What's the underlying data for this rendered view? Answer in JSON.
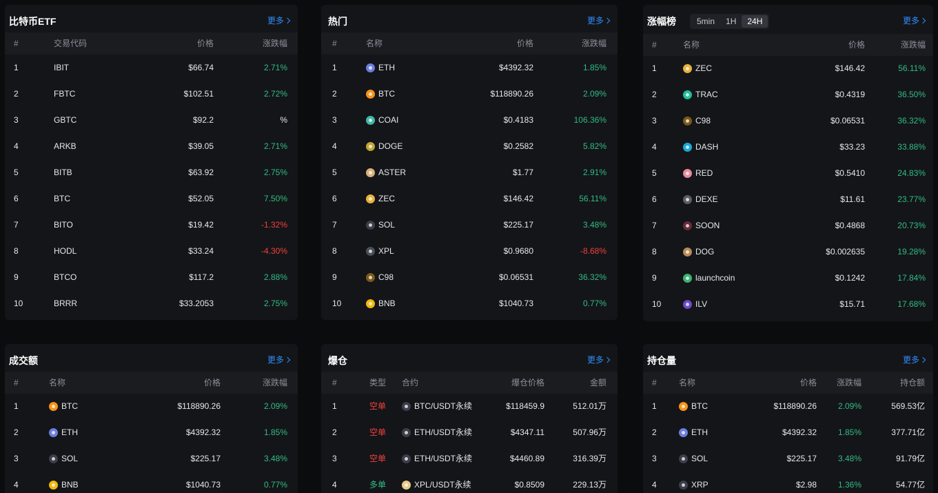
{
  "etf": {
    "title": "比特币ETF",
    "more": "更多",
    "headers": [
      "#",
      "交易代码",
      "价格",
      "涨跌幅"
    ],
    "rows": [
      {
        "rank": "1",
        "symbol": "IBIT",
        "price": "$66.74",
        "change": "2.71%",
        "dir": "up"
      },
      {
        "rank": "2",
        "symbol": "FBTC",
        "price": "$102.51",
        "change": "2.72%",
        "dir": "up"
      },
      {
        "rank": "3",
        "symbol": "GBTC",
        "price": "$92.2",
        "change": "%",
        "dir": "flat"
      },
      {
        "rank": "4",
        "symbol": "ARKB",
        "price": "$39.05",
        "change": "2.71%",
        "dir": "up"
      },
      {
        "rank": "5",
        "symbol": "BITB",
        "price": "$63.92",
        "change": "2.75%",
        "dir": "up"
      },
      {
        "rank": "6",
        "symbol": "BTC",
        "price": "$52.05",
        "change": "7.50%",
        "dir": "up"
      },
      {
        "rank": "7",
        "symbol": "BITO",
        "price": "$19.42",
        "change": "-1.32%",
        "dir": "down"
      },
      {
        "rank": "8",
        "symbol": "HODL",
        "price": "$33.24",
        "change": "-4.30%",
        "dir": "down"
      },
      {
        "rank": "9",
        "symbol": "BTCO",
        "price": "$117.2",
        "change": "2.88%",
        "dir": "up"
      },
      {
        "rank": "10",
        "symbol": "BRRR",
        "price": "$33.2053",
        "change": "2.75%",
        "dir": "up"
      }
    ]
  },
  "hot": {
    "title": "热门",
    "more": "更多",
    "headers": [
      "#",
      "名称",
      "价格",
      "涨跌幅"
    ],
    "rows": [
      {
        "rank": "1",
        "name": "ETH",
        "icon": "eth-icon",
        "color": "#6b7fe0",
        "price": "$4392.32",
        "change": "1.85%",
        "dir": "up"
      },
      {
        "rank": "2",
        "name": "BTC",
        "icon": "btc-icon",
        "color": "#f7931a",
        "price": "$118890.26",
        "change": "2.09%",
        "dir": "up"
      },
      {
        "rank": "3",
        "name": "COAI",
        "icon": "coai-icon",
        "color": "#3fb8a8",
        "price": "$0.4183",
        "change": "106.36%",
        "dir": "up"
      },
      {
        "rank": "4",
        "name": "DOGE",
        "icon": "doge-icon",
        "color": "#c2a633",
        "price": "$0.2582",
        "change": "5.82%",
        "dir": "up"
      },
      {
        "rank": "5",
        "name": "ASTER",
        "icon": "aster-icon",
        "color": "#d9b07a",
        "price": "$1.77",
        "change": "2.91%",
        "dir": "up"
      },
      {
        "rank": "6",
        "name": "ZEC",
        "icon": "zec-icon",
        "color": "#e8b33a",
        "price": "$146.42",
        "change": "56.11%",
        "dir": "up"
      },
      {
        "rank": "7",
        "name": "SOL",
        "icon": "sol-icon",
        "color": "#3a3f4a",
        "price": "$225.17",
        "change": "3.48%",
        "dir": "up"
      },
      {
        "rank": "8",
        "name": "XPL",
        "icon": "xpl-icon",
        "color": "#4a4f58",
        "price": "$0.9680",
        "change": "-8.68%",
        "dir": "down"
      },
      {
        "rank": "9",
        "name": "C98",
        "icon": "c98-icon",
        "color": "#7a5a1a",
        "price": "$0.06531",
        "change": "36.32%",
        "dir": "up"
      },
      {
        "rank": "10",
        "name": "BNB",
        "icon": "bnb-icon",
        "color": "#f0b90b",
        "price": "$1040.73",
        "change": "0.77%",
        "dir": "up"
      }
    ]
  },
  "gainers": {
    "title": "涨幅榜",
    "more": "更多",
    "tabs": [
      "5min",
      "1H",
      "24H"
    ],
    "active_tab": "24H",
    "headers": [
      "#",
      "名称",
      "价格",
      "涨跌幅"
    ],
    "rows": [
      {
        "rank": "1",
        "name": "ZEC",
        "icon": "zec-icon",
        "color": "#e8b33a",
        "price": "$146.42",
        "change": "56.11%",
        "dir": "up"
      },
      {
        "rank": "2",
        "name": "TRAC",
        "icon": "trac-icon",
        "color": "#1fbf9a",
        "price": "$0.4319",
        "change": "36.50%",
        "dir": "up"
      },
      {
        "rank": "3",
        "name": "C98",
        "icon": "c98-icon",
        "color": "#7a5a1a",
        "price": "$0.06531",
        "change": "36.32%",
        "dir": "up"
      },
      {
        "rank": "4",
        "name": "DASH",
        "icon": "dash-icon",
        "color": "#1aa9d8",
        "price": "$33.23",
        "change": "33.88%",
        "dir": "up"
      },
      {
        "rank": "5",
        "name": "RED",
        "icon": "red-icon",
        "color": "#e88a9a",
        "price": "$0.5410",
        "change": "24.83%",
        "dir": "up"
      },
      {
        "rank": "6",
        "name": "DEXE",
        "icon": "dexe-icon",
        "color": "#5a5e66",
        "price": "$11.61",
        "change": "23.77%",
        "dir": "up"
      },
      {
        "rank": "7",
        "name": "SOON",
        "icon": "soon-icon",
        "color": "#6a2a3a",
        "price": "$0.4868",
        "change": "20.73%",
        "dir": "up"
      },
      {
        "rank": "8",
        "name": "DOG",
        "icon": "dog-icon",
        "color": "#b88a5a",
        "price": "$0.002635",
        "change": "19.28%",
        "dir": "up"
      },
      {
        "rank": "9",
        "name": "launchcoin",
        "icon": "launchcoin-icon",
        "color": "#3cb371",
        "price": "$0.1242",
        "change": "17.84%",
        "dir": "up"
      },
      {
        "rank": "10",
        "name": "ILV",
        "icon": "ilv-icon",
        "color": "#6a4ac8",
        "price": "$15.71",
        "change": "17.68%",
        "dir": "up"
      }
    ]
  },
  "volume": {
    "title": "成交额",
    "more": "更多",
    "headers": [
      "#",
      "名称",
      "价格",
      "涨跌幅"
    ],
    "rows": [
      {
        "rank": "1",
        "name": "BTC",
        "icon": "btc-icon",
        "color": "#f7931a",
        "price": "$118890.26",
        "change": "2.09%",
        "dir": "up"
      },
      {
        "rank": "2",
        "name": "ETH",
        "icon": "eth-icon",
        "color": "#6b7fe0",
        "price": "$4392.32",
        "change": "1.85%",
        "dir": "up"
      },
      {
        "rank": "3",
        "name": "SOL",
        "icon": "sol-icon",
        "color": "#3a3f4a",
        "price": "$225.17",
        "change": "3.48%",
        "dir": "up"
      },
      {
        "rank": "4",
        "name": "BNB",
        "icon": "bnb-icon",
        "color": "#f0b90b",
        "price": "$1040.73",
        "change": "0.77%",
        "dir": "up"
      }
    ]
  },
  "liquidation": {
    "title": "爆仓",
    "more": "更多",
    "headers": [
      "#",
      "类型",
      "合约",
      "爆仓价格",
      "金额"
    ],
    "rows": [
      {
        "rank": "1",
        "type": "空单",
        "side": "short",
        "contract": "BTC/USDT永续",
        "icon": "btc-icon",
        "color": "#3a3f4a",
        "price": "$118459.9",
        "amount": "512.01万"
      },
      {
        "rank": "2",
        "type": "空单",
        "side": "short",
        "contract": "ETH/USDT永续",
        "icon": "eth-icon",
        "color": "#3a3f4a",
        "price": "$4347.11",
        "amount": "507.96万"
      },
      {
        "rank": "3",
        "type": "空单",
        "side": "short",
        "contract": "ETH/USDT永续",
        "icon": "eth-icon",
        "color": "#3a3f4a",
        "price": "$4460.89",
        "amount": "316.39万"
      },
      {
        "rank": "4",
        "type": "多单",
        "side": "long",
        "contract": "XPL/USDT永续",
        "icon": "xpl-icon",
        "color": "#e8c98a",
        "price": "$0.8509",
        "amount": "229.13万"
      }
    ]
  },
  "open_interest": {
    "title": "持仓量",
    "more": "更多",
    "headers": [
      "#",
      "名称",
      "价格",
      "涨跌幅",
      "持仓额"
    ],
    "rows": [
      {
        "rank": "1",
        "name": "BTC",
        "icon": "btc-icon",
        "color": "#f7931a",
        "price": "$118890.26",
        "change": "2.09%",
        "dir": "up",
        "oi": "569.53亿"
      },
      {
        "rank": "2",
        "name": "ETH",
        "icon": "eth-icon",
        "color": "#6b7fe0",
        "price": "$4392.32",
        "change": "1.85%",
        "dir": "up",
        "oi": "377.71亿"
      },
      {
        "rank": "3",
        "name": "SOL",
        "icon": "sol-icon",
        "color": "#3a3f4a",
        "price": "$225.17",
        "change": "3.48%",
        "dir": "up",
        "oi": "91.79亿"
      },
      {
        "rank": "4",
        "name": "XRP",
        "icon": "xrp-icon",
        "color": "#3a3f4a",
        "price": "$2.98",
        "change": "1.36%",
        "dir": "up",
        "oi": "54.77亿"
      }
    ]
  }
}
